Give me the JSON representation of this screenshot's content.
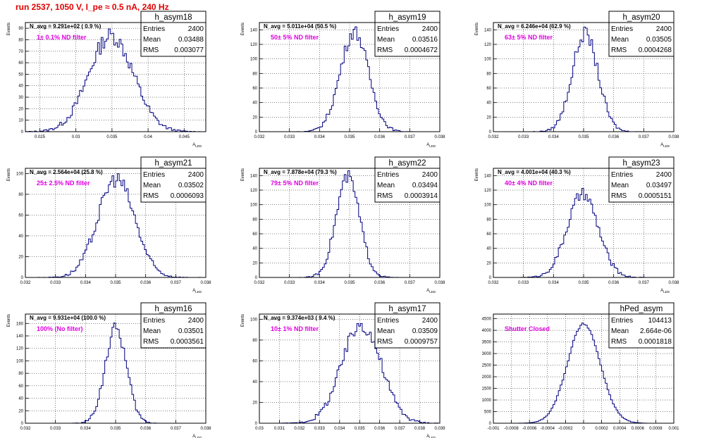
{
  "title": "run 2537,  1050 V, I_pe ≈ 0.5 nA, 240 Hz",
  "stat_labels": {
    "entries": "Entries",
    "mean": "Mean",
    "rms": "RMS"
  },
  "chart_data": [
    {
      "type": "histogram",
      "name": "h_asym18",
      "ylabel": "Events",
      "xlabel": "A_LED",
      "xlim": [
        0.023,
        0.048
      ],
      "ylim": [
        0,
        95
      ],
      "xticks": [
        0.025,
        0.03,
        0.035,
        0.04,
        0.045
      ],
      "xtick_labels": [
        "0.025",
        "0.03",
        "0.035",
        "0.04",
        "0.045"
      ],
      "yticks": [
        0,
        10,
        20,
        30,
        40,
        50,
        60,
        70,
        80,
        90
      ],
      "navg": "N_avg = 9.291e+02 ( 0.9 %)",
      "filter": "1± 0.1% ND filter",
      "stats": {
        "entries": "2400",
        "mean": "0.03488",
        "rms": "0.003077"
      },
      "mean": 0.03488,
      "rms": 0.003077,
      "peak": 88,
      "nbins": 100
    },
    {
      "type": "histogram",
      "name": "h_asym19",
      "ylabel": "Events",
      "xlabel": "A_LED",
      "xlim": [
        0.032,
        0.038
      ],
      "ylim": [
        0,
        150
      ],
      "xticks": [
        0.032,
        0.033,
        0.034,
        0.035,
        0.036,
        0.037,
        0.038
      ],
      "xtick_labels": [
        "0.032",
        "0.033",
        "0.034",
        "0.035",
        "0.036",
        "0.037",
        "0.038"
      ],
      "yticks": [
        0,
        20,
        40,
        60,
        80,
        100,
        120,
        140
      ],
      "navg": "N_avg = 5.011e+04 (50.5 %)",
      "filter": "50± 5% ND filter",
      "stats": {
        "entries": "2400",
        "mean": "0.03516",
        "rms": "0.0004672"
      },
      "mean": 0.03516,
      "rms": 0.0004672,
      "peak": 145,
      "nbins": 100
    },
    {
      "type": "histogram",
      "name": "h_asym20",
      "ylabel": "Events",
      "xlabel": "A_LED",
      "xlim": [
        0.032,
        0.038
      ],
      "ylim": [
        0,
        150
      ],
      "xticks": [
        0.032,
        0.033,
        0.034,
        0.035,
        0.036,
        0.037,
        0.038
      ],
      "xtick_labels": [
        "0.032",
        "0.033",
        "0.034",
        "0.035",
        "0.036",
        "0.037",
        "0.038"
      ],
      "yticks": [
        0,
        20,
        40,
        60,
        80,
        100,
        120,
        140
      ],
      "navg": "N_avg = 6.246e+04 (62.9 %)",
      "filter": "63± 5% ND filter",
      "stats": {
        "entries": "2400",
        "mean": "0.03505",
        "rms": "0.0004268"
      },
      "mean": 0.03505,
      "rms": 0.0004268,
      "peak": 142,
      "nbins": 100
    },
    {
      "type": "histogram",
      "name": "h_asym21",
      "ylabel": "Events",
      "xlabel": "A_LED",
      "xlim": [
        0.032,
        0.038
      ],
      "ylim": [
        0,
        105
      ],
      "xticks": [
        0.032,
        0.033,
        0.034,
        0.035,
        0.036,
        0.037,
        0.038
      ],
      "xtick_labels": [
        "0.032",
        "0.033",
        "0.034",
        "0.035",
        "0.036",
        "0.037",
        "0.038"
      ],
      "yticks": [
        0,
        20,
        40,
        60,
        80,
        100
      ],
      "navg": "N_avg = 2.564e+04 (25.8 %)",
      "filter": "25± 2.5% ND filter",
      "stats": {
        "entries": "2400",
        "mean": "0.03502",
        "rms": "0.0006093"
      },
      "mean": 0.03502,
      "rms": 0.0006093,
      "peak": 100,
      "nbins": 100
    },
    {
      "type": "histogram",
      "name": "h_asym22",
      "ylabel": "Events",
      "xlabel": "A_LED",
      "xlim": [
        0.032,
        0.038
      ],
      "ylim": [
        0,
        150
      ],
      "xticks": [
        0.032,
        0.033,
        0.034,
        0.035,
        0.036,
        0.037,
        0.038
      ],
      "xtick_labels": [
        "0.032",
        "0.033",
        "0.034",
        "0.035",
        "0.036",
        "0.037",
        "0.038"
      ],
      "yticks": [
        0,
        20,
        40,
        60,
        80,
        100,
        120,
        140
      ],
      "navg": "N_avg = 7.878e+04 (79.3 %)",
      "filter": "79± 5% ND filter",
      "stats": {
        "entries": "2400",
        "mean": "0.03494",
        "rms": "0.0003914"
      },
      "mean": 0.03494,
      "rms": 0.0003914,
      "peak": 145,
      "nbins": 100
    },
    {
      "type": "histogram",
      "name": "h_asym23",
      "ylabel": "Events",
      "xlabel": "A_LED",
      "xlim": [
        0.032,
        0.038
      ],
      "ylim": [
        0,
        150
      ],
      "xticks": [
        0.032,
        0.033,
        0.034,
        0.035,
        0.036,
        0.037,
        0.038
      ],
      "xtick_labels": [
        "0.032",
        "0.033",
        "0.034",
        "0.035",
        "0.036",
        "0.037",
        "0.038"
      ],
      "yticks": [
        0,
        20,
        40,
        60,
        80,
        100,
        120,
        140
      ],
      "navg": "N_avg = 4.001e+04 (40.3 %)",
      "filter": "40± 4% ND filter",
      "stats": {
        "entries": "2400",
        "mean": "0.03497",
        "rms": "0.0005151"
      },
      "mean": 0.03497,
      "rms": 0.0005151,
      "peak": 120,
      "nbins": 100
    },
    {
      "type": "histogram",
      "name": "h_asym16",
      "ylabel": "Events",
      "xlabel": "A_LED",
      "xlim": [
        0.032,
        0.038
      ],
      "ylim": [
        0,
        175
      ],
      "xticks": [
        0.032,
        0.033,
        0.034,
        0.035,
        0.036,
        0.037,
        0.038
      ],
      "xtick_labels": [
        "0.032",
        "0.033",
        "0.034",
        "0.035",
        "0.036",
        "0.037",
        "0.038"
      ],
      "yticks": [
        0,
        20,
        40,
        60,
        80,
        100,
        120,
        140,
        160
      ],
      "navg": "N_avg = 9.931e+04 (100.0 %)",
      "filter": "100% (No filter)",
      "stats": {
        "entries": "2400",
        "mean": "0.03501",
        "rms": "0.0003561"
      },
      "mean": 0.03501,
      "rms": 0.0003561,
      "peak": 160,
      "nbins": 100
    },
    {
      "type": "histogram",
      "name": "h_asym17",
      "ylabel": "Events",
      "xlabel": "A_LED",
      "xlim": [
        0.03,
        0.039
      ],
      "ylim": [
        0,
        105
      ],
      "xticks": [
        0.03,
        0.031,
        0.032,
        0.033,
        0.034,
        0.035,
        0.036,
        0.037,
        0.038,
        0.039
      ],
      "xtick_labels": [
        "0.03",
        "0.031",
        "0.032",
        "0.033",
        "0.034",
        "0.035",
        "0.036",
        "0.037",
        "0.038",
        "0.039"
      ],
      "yticks": [
        0,
        20,
        40,
        60,
        80,
        100
      ],
      "navg": "N_avg = 9.374e+03 ( 9.4 %)",
      "filter": "10± 1% ND filter",
      "stats": {
        "entries": "2400",
        "mean": "0.03509",
        "rms": "0.0009757"
      },
      "mean": 0.03509,
      "rms": 0.0009757,
      "peak": 100,
      "nbins": 100
    },
    {
      "type": "histogram",
      "name": "hPed_asym",
      "ylabel": "",
      "xlabel": "",
      "xlim": [
        -0.001,
        0.001
      ],
      "ylim": [
        0,
        4700
      ],
      "xticks": [
        -0.001,
        -0.0008,
        -0.0006,
        -0.0004,
        -0.0002,
        0,
        0.0002,
        0.0004,
        0.0006,
        0.0008,
        0.001
      ],
      "xtick_labels": [
        "-0.001",
        "-0.0008",
        "-0.0006",
        "-0.0004",
        "-0.0002",
        "0",
        "0.0002",
        "0.0004",
        "0.0006",
        "0.0008",
        "0.001"
      ],
      "yticks": [
        0,
        500,
        1000,
        1500,
        2000,
        2500,
        3000,
        3500,
        4000,
        4500
      ],
      "navg": "",
      "filter": "Shutter Closed",
      "stats": {
        "entries": "104413",
        "mean": "2.664e-06",
        "rms": "0.0001818"
      },
      "mean": 2.664e-06,
      "rms": 0.0001818,
      "peak": 4500,
      "nbins": 100
    }
  ]
}
